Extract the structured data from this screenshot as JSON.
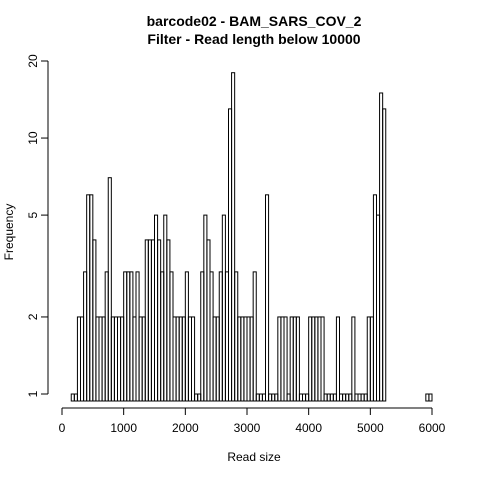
{
  "chart_data": {
    "type": "bar",
    "title": "barcode02 - BAM_SARS_COV_2",
    "subtitle": "Filter - Read length below 10000",
    "xlabel": "Read size",
    "ylabel": "Frequency",
    "x_scale": "linear",
    "y_scale": "log",
    "xlim": [
      0,
      6000
    ],
    "ylim": [
      1,
      20
    ],
    "x_ticks": [
      0,
      1000,
      2000,
      3000,
      4000,
      5000,
      6000
    ],
    "x_tick_labels": [
      "0",
      "1000",
      "2000",
      "3000",
      "4000",
      "5000",
      "6000"
    ],
    "y_ticks": [
      1,
      2,
      5,
      10,
      20
    ],
    "y_tick_labels": [
      "1",
      "2",
      "5",
      "10",
      "20"
    ],
    "bin_width": 50,
    "grid": false,
    "legend": "none",
    "bins": [
      {
        "x": 150,
        "y": 1
      },
      {
        "x": 200,
        "y": 1
      },
      {
        "x": 250,
        "y": 2
      },
      {
        "x": 300,
        "y": 2
      },
      {
        "x": 350,
        "y": 3
      },
      {
        "x": 400,
        "y": 6
      },
      {
        "x": 450,
        "y": 6
      },
      {
        "x": 500,
        "y": 4
      },
      {
        "x": 550,
        "y": 2
      },
      {
        "x": 600,
        "y": 2
      },
      {
        "x": 650,
        "y": 2
      },
      {
        "x": 700,
        "y": 3
      },
      {
        "x": 750,
        "y": 7
      },
      {
        "x": 800,
        "y": 2
      },
      {
        "x": 850,
        "y": 2
      },
      {
        "x": 900,
        "y": 2
      },
      {
        "x": 950,
        "y": 2
      },
      {
        "x": 1000,
        "y": 3
      },
      {
        "x": 1050,
        "y": 3
      },
      {
        "x": 1100,
        "y": 3
      },
      {
        "x": 1150,
        "y": 2
      },
      {
        "x": 1200,
        "y": 3
      },
      {
        "x": 1250,
        "y": 2
      },
      {
        "x": 1300,
        "y": 2
      },
      {
        "x": 1350,
        "y": 4
      },
      {
        "x": 1400,
        "y": 4
      },
      {
        "x": 1450,
        "y": 4
      },
      {
        "x": 1500,
        "y": 5
      },
      {
        "x": 1550,
        "y": 4
      },
      {
        "x": 1600,
        "y": 3
      },
      {
        "x": 1650,
        "y": 5
      },
      {
        "x": 1700,
        "y": 4
      },
      {
        "x": 1750,
        "y": 3
      },
      {
        "x": 1800,
        "y": 2
      },
      {
        "x": 1850,
        "y": 2
      },
      {
        "x": 1900,
        "y": 2
      },
      {
        "x": 1950,
        "y": 2
      },
      {
        "x": 2000,
        "y": 3
      },
      {
        "x": 2050,
        "y": 2
      },
      {
        "x": 2100,
        "y": 2
      },
      {
        "x": 2150,
        "y": 1
      },
      {
        "x": 2200,
        "y": 1
      },
      {
        "x": 2250,
        "y": 3
      },
      {
        "x": 2300,
        "y": 5
      },
      {
        "x": 2350,
        "y": 4
      },
      {
        "x": 2400,
        "y": 3
      },
      {
        "x": 2450,
        "y": 2
      },
      {
        "x": 2500,
        "y": 2
      },
      {
        "x": 2550,
        "y": 3
      },
      {
        "x": 2600,
        "y": 5
      },
      {
        "x": 2650,
        "y": 3
      },
      {
        "x": 2700,
        "y": 13
      },
      {
        "x": 2750,
        "y": 18
      },
      {
        "x": 2800,
        "y": 3
      },
      {
        "x": 2850,
        "y": 2
      },
      {
        "x": 2900,
        "y": 2
      },
      {
        "x": 2950,
        "y": 2
      },
      {
        "x": 3000,
        "y": 2
      },
      {
        "x": 3050,
        "y": 2
      },
      {
        "x": 3100,
        "y": 3
      },
      {
        "x": 3150,
        "y": 1
      },
      {
        "x": 3200,
        "y": 1
      },
      {
        "x": 3250,
        "y": 1
      },
      {
        "x": 3300,
        "y": 6
      },
      {
        "x": 3350,
        "y": 1
      },
      {
        "x": 3400,
        "y": 1
      },
      {
        "x": 3450,
        "y": 1
      },
      {
        "x": 3500,
        "y": 2
      },
      {
        "x": 3550,
        "y": 2
      },
      {
        "x": 3600,
        "y": 2
      },
      {
        "x": 3650,
        "y": 1
      },
      {
        "x": 3700,
        "y": 2
      },
      {
        "x": 3750,
        "y": 2
      },
      {
        "x": 3800,
        "y": 2
      },
      {
        "x": 3850,
        "y": 1
      },
      {
        "x": 3900,
        "y": 1
      },
      {
        "x": 3950,
        "y": 1
      },
      {
        "x": 4000,
        "y": 2
      },
      {
        "x": 4050,
        "y": 2
      },
      {
        "x": 4100,
        "y": 2
      },
      {
        "x": 4150,
        "y": 2
      },
      {
        "x": 4200,
        "y": 2
      },
      {
        "x": 4250,
        "y": 1
      },
      {
        "x": 4300,
        "y": 1
      },
      {
        "x": 4350,
        "y": 1
      },
      {
        "x": 4400,
        "y": 1
      },
      {
        "x": 4450,
        "y": 2
      },
      {
        "x": 4500,
        "y": 1
      },
      {
        "x": 4550,
        "y": 1
      },
      {
        "x": 4600,
        "y": 1
      },
      {
        "x": 4650,
        "y": 1
      },
      {
        "x": 4700,
        "y": 2
      },
      {
        "x": 4750,
        "y": 1
      },
      {
        "x": 4800,
        "y": 1
      },
      {
        "x": 4850,
        "y": 1
      },
      {
        "x": 4900,
        "y": 1
      },
      {
        "x": 4950,
        "y": 2
      },
      {
        "x": 5000,
        "y": 2
      },
      {
        "x": 5050,
        "y": 6
      },
      {
        "x": 5100,
        "y": 5
      },
      {
        "x": 5150,
        "y": 15
      },
      {
        "x": 5200,
        "y": 13
      },
      {
        "x": 5900,
        "y": 1
      },
      {
        "x": 5950,
        "y": 1
      }
    ]
  }
}
